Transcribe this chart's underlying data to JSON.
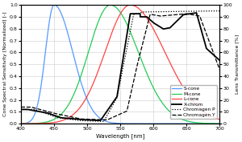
{
  "xlabel": "Wavelength [nm]",
  "ylabel_left": "Cone Spectral Sensitivity [Normalized] [-]",
  "ylabel_right": "Lens Transmittance [%]",
  "xlim": [
    400,
    700
  ],
  "ylim_left": [
    0.0,
    1.0
  ],
  "ylim_right": [
    0,
    100
  ],
  "xticks": [
    400,
    450,
    500,
    550,
    600,
    650,
    700
  ],
  "yticks_left": [
    0.0,
    0.1,
    0.2,
    0.3,
    0.4,
    0.5,
    0.6,
    0.7,
    0.8,
    0.9,
    1.0
  ],
  "yticks_right": [
    0,
    10,
    20,
    30,
    40,
    50,
    60,
    70,
    80,
    90,
    100
  ],
  "s_cone_color": "#5599ff",
  "m_cone_color": "#22cc55",
  "l_cone_color": "#ff4444",
  "xchrom_color": "#000000",
  "chromagen_p_color": "#000000",
  "chromagen_y_color": "#000000",
  "background_color": "#ffffff",
  "grid_color": "#cccccc",
  "legend_labels": [
    "S-cone",
    "M-cone",
    "L-cone",
    "X-chrom",
    "Chromagen P",
    "Chromagen Y"
  ]
}
